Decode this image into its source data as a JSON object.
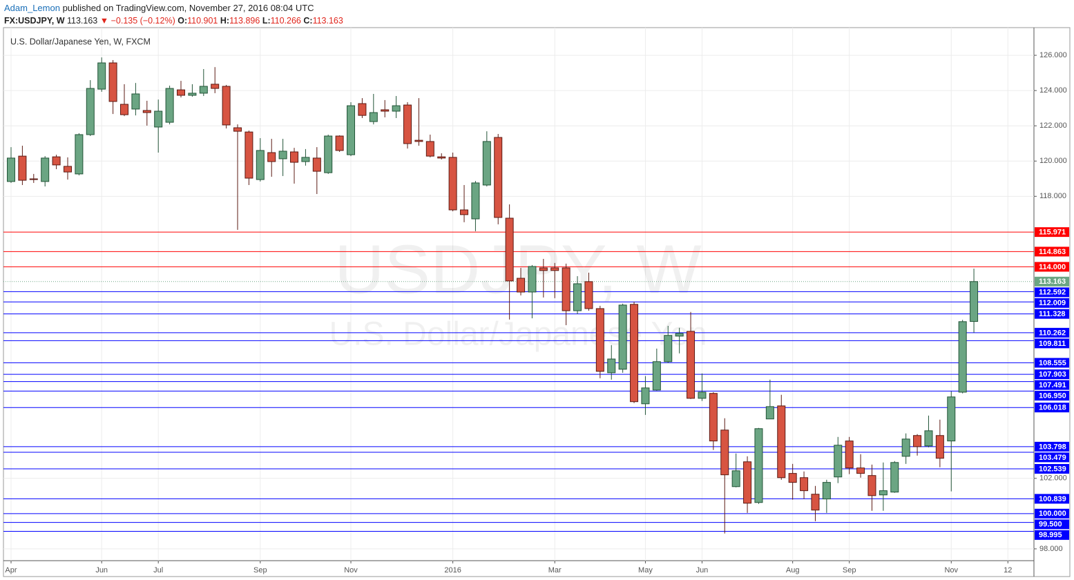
{
  "header": {
    "author": "Adam_Lemon",
    "published": "published on TradingView.com, November 27, 2016 08:04 UTC",
    "symbol": "FX:USDJPY, W",
    "last": "113.163",
    "arrow": "▼",
    "change": "−0.135 (−0.12%)",
    "ohlc": [
      {
        "label": "O:",
        "value": "110.901"
      },
      {
        "label": "H:",
        "value": "113.896"
      },
      {
        "label": "L:",
        "value": "110.266"
      },
      {
        "label": "C:",
        "value": "113.163"
      }
    ]
  },
  "chart_data": {
    "type": "candlestick",
    "title": "U.S. Dollar/Japanese Yen, W, FXCM",
    "watermark": [
      "USDJPY, W",
      "U.S. Dollar/Japanese Yen"
    ],
    "up_color": "#6ba583",
    "down_color": "#d75442",
    "up_border": "#225437",
    "down_border": "#5b1a13",
    "grid": true,
    "xlim": [
      -0.67,
      90.3
    ],
    "xticks": [
      {
        "value": 0,
        "label": "Apr"
      },
      {
        "value": 8,
        "label": "Jun"
      },
      {
        "value": 13,
        "label": "Jul"
      },
      {
        "value": 22,
        "label": "Sep"
      },
      {
        "value": 30,
        "label": "Nov"
      },
      {
        "value": 39,
        "label": "2016"
      },
      {
        "value": 48,
        "label": "Mar"
      },
      {
        "value": 56,
        "label": "May"
      },
      {
        "value": 61,
        "label": "Jun"
      },
      {
        "value": 69,
        "label": "Aug"
      },
      {
        "value": 74,
        "label": "Sep"
      },
      {
        "value": 83,
        "label": "Nov"
      },
      {
        "value": 88,
        "label": "12"
      }
    ],
    "ylim": [
      97.33,
      127.57
    ],
    "yticks": [
      {
        "value": 98,
        "label": "98.000"
      },
      {
        "value": 102,
        "label": "102.000"
      },
      {
        "value": 118,
        "label": "118.000"
      },
      {
        "value": 120,
        "label": "120.000"
      },
      {
        "value": 122,
        "label": "122.000"
      },
      {
        "value": 124,
        "label": "124.000"
      },
      {
        "value": 126,
        "label": "126.000"
      }
    ],
    "open": [
      118.84,
      120.28,
      118.99,
      118.84,
      120.24,
      119.7,
      119.27,
      121.5,
      124.08,
      125.57,
      123.22,
      122.95,
      122.87,
      121.93,
      122.2,
      124.04,
      123.73,
      123.85,
      124.36,
      124.24,
      121.89,
      121.65,
      118.95,
      120.48,
      120.13,
      120.52,
      119.97,
      120.17,
      119.34,
      121.42,
      120.36,
      123.26,
      122.24,
      122.91,
      122.83,
      123.18,
      121.18,
      121.11,
      120.24,
      120.21,
      117.23,
      116.72,
      118.64,
      121.34,
      116.76,
      113.35,
      112.57,
      113.94,
      113.94,
      113.94,
      111.51,
      113.16,
      111.63,
      107.99,
      108.19,
      111.87,
      106.23,
      107.01,
      108.62,
      110.07,
      110.34,
      106.54,
      106.82,
      104.74,
      101.53,
      102.94,
      100.63,
      105.37,
      106.11,
      102.28,
      102.04,
      101.1,
      100.83,
      102.08,
      104.12,
      102.59,
      102.16,
      101.06,
      101.22,
      103.25,
      104.43,
      103.84,
      104.43,
      104.12,
      106.89,
      110.901
    ],
    "high": [
      120.79,
      120.87,
      119.27,
      120.28,
      120.36,
      120.21,
      121.58,
      124.59,
      125.88,
      125.73,
      124.36,
      124.43,
      123.42,
      123.49,
      124.28,
      124.55,
      124.36,
      125.22,
      125.33,
      124.32,
      122.08,
      121.73,
      121.3,
      121.26,
      121.26,
      120.75,
      120.68,
      120.79,
      121.5,
      121.46,
      123.34,
      123.57,
      123.81,
      123.46,
      123.69,
      123.34,
      123.57,
      121.5,
      120.44,
      120.48,
      118.64,
      118.87,
      121.69,
      121.54,
      117.54,
      113.94,
      114.1,
      114.45,
      114.22,
      114.18,
      113.47,
      113.67,
      111.79,
      109.56,
      111.91,
      112.02,
      107.8,
      109.36,
      110.65,
      110.54,
      111.44,
      107.95,
      106.89,
      105.41,
      103.41,
      103.25,
      104.86,
      107.6,
      106.74,
      102.82,
      102.39,
      101.57,
      101.92,
      104.35,
      104.35,
      103.37,
      102.78,
      102.9,
      102.98,
      104.55,
      104.51,
      105.56,
      105.33,
      106.93,
      110.99,
      113.896
    ],
    "low": [
      118.76,
      118.64,
      118.76,
      118.56,
      119.54,
      118.95,
      119.19,
      121.42,
      123.93,
      122.67,
      122.55,
      122.59,
      122.01,
      120.48,
      122.08,
      123.61,
      123.65,
      123.69,
      123.85,
      121.85,
      116.1,
      118.64,
      118.84,
      119.11,
      119.15,
      118.72,
      119.74,
      118.13,
      119.27,
      120.52,
      120.28,
      122.44,
      122.08,
      122.48,
      122.44,
      120.71,
      120.87,
      120.21,
      120.09,
      117.15,
      116.53,
      116.02,
      118.56,
      116.41,
      111.01,
      112.38,
      111.08,
      112.26,
      112.22,
      110.69,
      111.32,
      111.51,
      107.68,
      107.6,
      107.99,
      106.27,
      105.6,
      106.97,
      108.54,
      109.09,
      106.5,
      106.39,
      103.61,
      98.87,
      101.49,
      100.04,
      100.55,
      105.37,
      101.92,
      100.79,
      100.83,
      99.57,
      100.04,
      101.73,
      102.24,
      102.04,
      100.16,
      100.16,
      101.18,
      102.82,
      103.29,
      103.76,
      102.63,
      101.26,
      106.82,
      110.266
    ],
    "close": [
      120.17,
      118.91,
      118.95,
      120.17,
      119.78,
      119.38,
      121.5,
      124.12,
      125.57,
      123.38,
      122.63,
      123.81,
      122.75,
      122.83,
      124.12,
      123.73,
      123.85,
      124.24,
      124.12,
      122.05,
      121.69,
      119.03,
      120.6,
      119.97,
      120.56,
      119.93,
      120.21,
      119.42,
      121.42,
      120.6,
      123.14,
      122.59,
      122.75,
      122.83,
      123.14,
      120.99,
      121.11,
      120.28,
      120.17,
      117.23,
      116.96,
      118.76,
      121.11,
      116.8,
      113.2,
      112.57,
      114.02,
      113.79,
      113.79,
      111.51,
      113.04,
      111.63,
      108.07,
      108.77,
      111.83,
      106.35,
      107.13,
      108.62,
      110.11,
      110.22,
      106.54,
      106.89,
      104.12,
      102.2,
      102.43,
      100.59,
      104.82,
      106.07,
      102.04,
      101.77,
      101.3,
      100.2,
      101.77,
      103.88,
      102.59,
      102.28,
      101.02,
      101.3,
      102.9,
      104.23,
      103.8,
      104.7,
      103.14,
      106.62,
      110.89,
      113.163
    ],
    "last_price": {
      "value": 113.163,
      "label": "113.163",
      "color": "#6ba583"
    },
    "levels": [
      {
        "value": 115.971,
        "label": "115.971",
        "color": "#ff0000"
      },
      {
        "value": 114.863,
        "label": "114.863",
        "color": "#ff0000"
      },
      {
        "value": 114,
        "label": "114.000",
        "color": "#ff0000"
      },
      {
        "value": 112.592,
        "label": "112.592",
        "color": "#0000ff"
      },
      {
        "value": 112.009,
        "label": "112.009",
        "color": "#0000ff"
      },
      {
        "value": 111.328,
        "label": "111.328",
        "color": "#0000ff"
      },
      {
        "value": 110.262,
        "label": "110.262",
        "color": "#0000ff"
      },
      {
        "value": 109.811,
        "label": "109.811",
        "color": "#0000ff"
      },
      {
        "value": 108.555,
        "label": "108.555",
        "color": "#0000ff"
      },
      {
        "value": 107.903,
        "label": "107.903",
        "color": "#0000ff"
      },
      {
        "value": 107.491,
        "label": "107.491",
        "color": "#0000ff"
      },
      {
        "value": 106.95,
        "label": "106.950",
        "color": "#0000ff"
      },
      {
        "value": 106.018,
        "label": "106.018",
        "color": "#0000ff"
      },
      {
        "value": 103.798,
        "label": "103.798",
        "color": "#0000ff"
      },
      {
        "value": 103.479,
        "label": "103.479",
        "color": "#0000ff"
      },
      {
        "value": 102.539,
        "label": "102.539",
        "color": "#0000ff"
      },
      {
        "value": 100.839,
        "label": "100.839",
        "color": "#0000ff"
      },
      {
        "value": 100,
        "label": "100.000",
        "color": "#0000ff"
      },
      {
        "value": 99.5,
        "label": "99.500",
        "color": "#0000ff"
      },
      {
        "value": 98.995,
        "label": "98.995",
        "color": "#0000ff"
      }
    ]
  }
}
